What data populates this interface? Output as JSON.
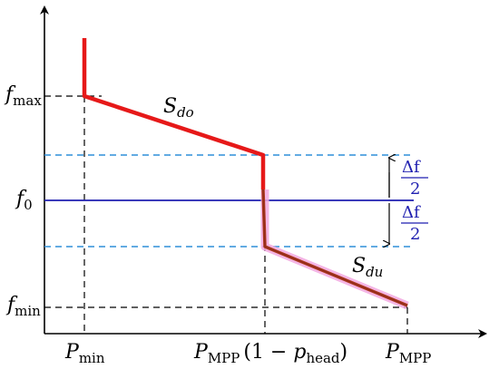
{
  "y_labels": {
    "fmax": {
      "sym": "f",
      "sub": "max"
    },
    "f0": {
      "sym": "f",
      "sub": "0"
    },
    "fmin": {
      "sym": "f",
      "sub": "min"
    }
  },
  "x_labels": {
    "pmin": {
      "sym": "P",
      "sub": "min"
    },
    "pmpp_head": {
      "sym": "P",
      "sub": "MPP",
      "paren_open": "(1 − ",
      "psym": "p",
      "psub": "head",
      "paren_close": ")"
    },
    "pmpp": {
      "sym": "P",
      "sub": "MPP"
    }
  },
  "curve_labels": {
    "sdo": {
      "sym": "S",
      "sub": "do"
    },
    "sdu": {
      "sym": "S",
      "sub": "du"
    }
  },
  "deadband": {
    "upper": {
      "num": "Δf",
      "den": "2"
    },
    "lower": {
      "num": "Δf",
      "den": "2"
    }
  },
  "colors": {
    "red_curve": "#e61919",
    "lower_curve": "#8b2a1a",
    "highlight": "#f2a8e0",
    "f0_line": "#1f1fb0",
    "band_line": "#2f8fd8",
    "axes": "#000000"
  }
}
